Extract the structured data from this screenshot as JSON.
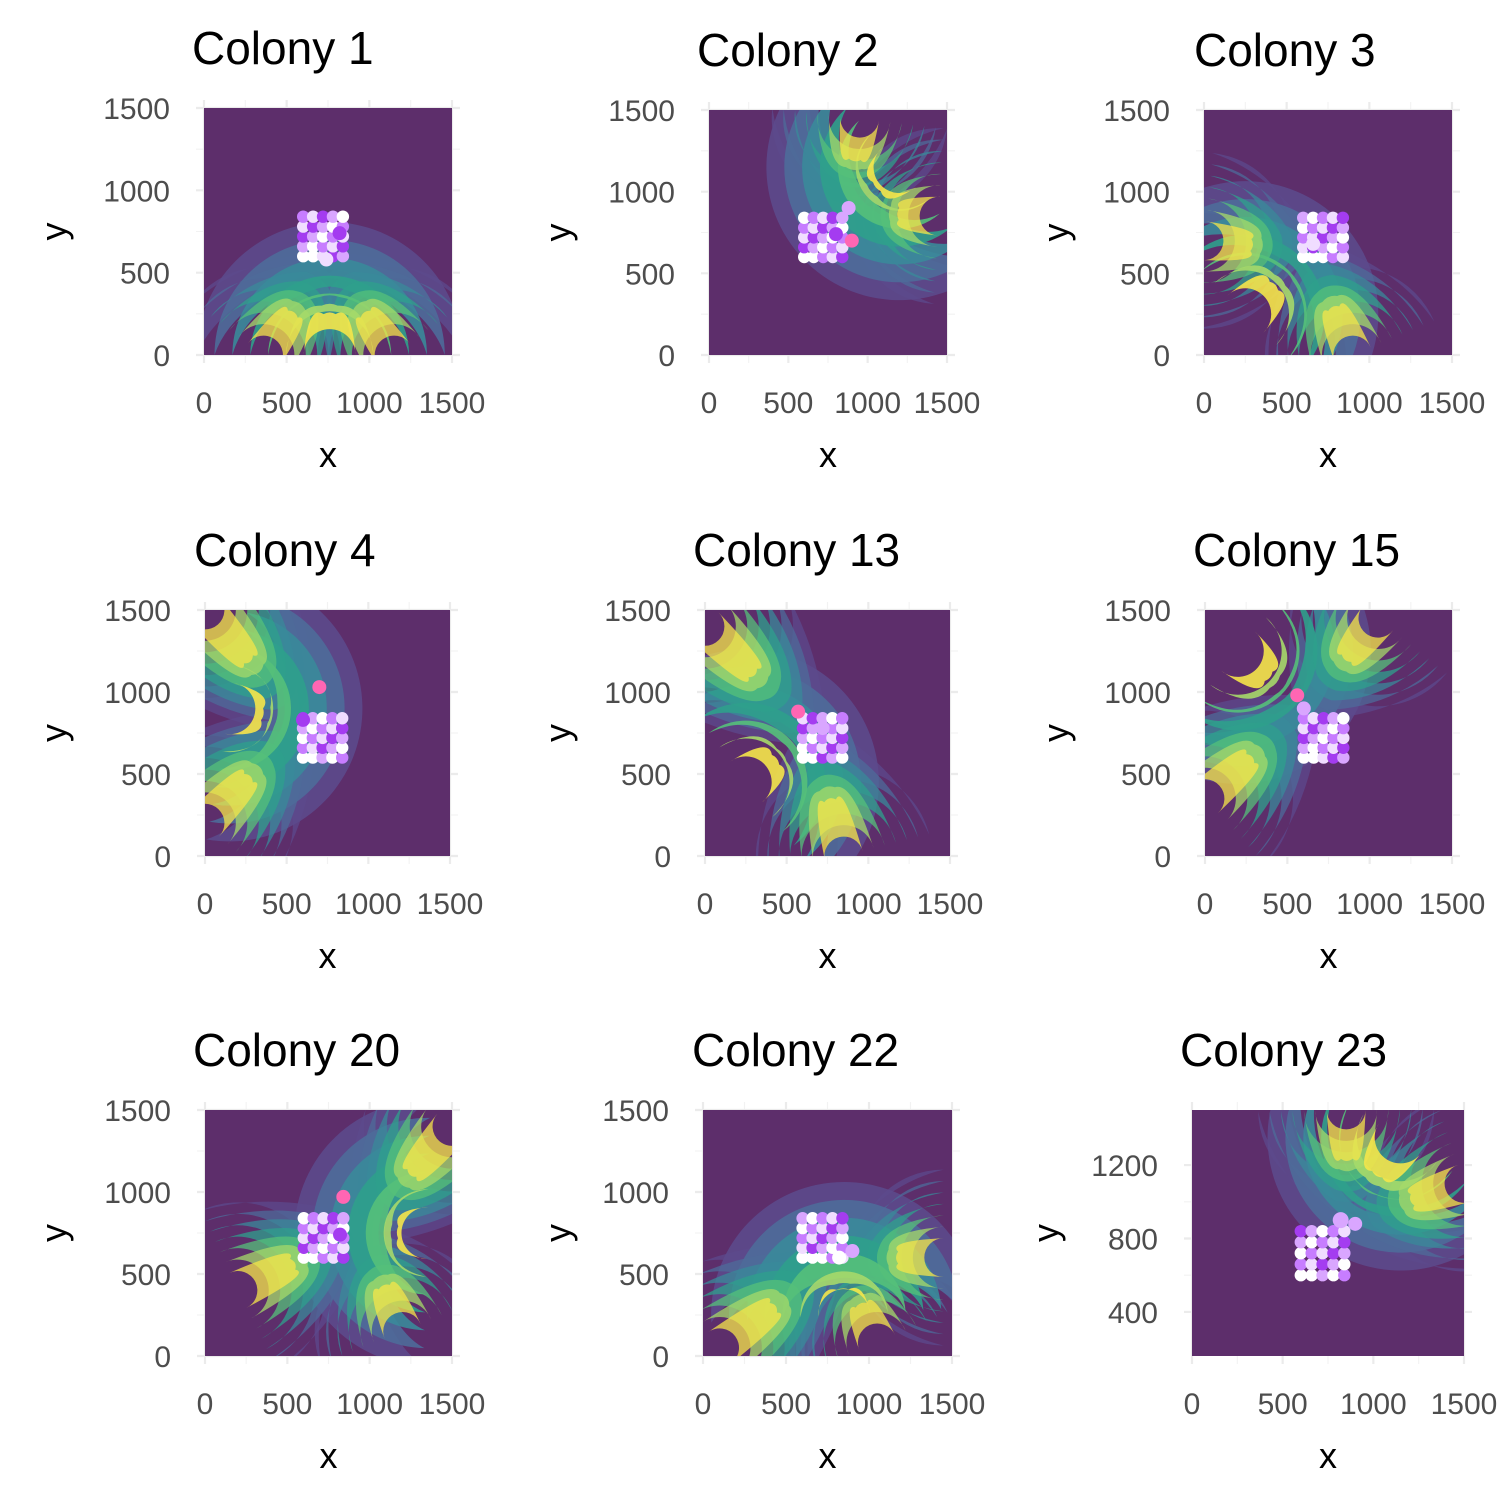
{
  "palette": {
    "background": "#5d2e6b",
    "density": [
      "#5d2e6b",
      "#5c4a8c",
      "#4e6b9a",
      "#3a8a9a",
      "#2fa08c",
      "#55c07a",
      "#a6d96a",
      "#f5e64a"
    ],
    "cells": [
      "#ffffff",
      "#f0ddff",
      "#d9a6ff",
      "#c77dff",
      "#a43cf0",
      "#ff66b3"
    ]
  },
  "chart_data": [
    {
      "type": "density-contour",
      "title": "Colony 1",
      "xlabel": "x",
      "ylabel": "y",
      "xlim": [
        0,
        1500
      ],
      "ylim": [
        0,
        1500
      ],
      "xticks": [
        {
          "v": 0,
          "label": "0"
        },
        {
          "v": 500,
          "label": "500"
        },
        {
          "v": 1000,
          "label": "1000"
        },
        {
          "v": 1500,
          "label": "1500"
        }
      ],
      "yticks": [
        {
          "v": 0,
          "label": "0"
        },
        {
          "v": 500,
          "label": "500"
        },
        {
          "v": 1000,
          "label": "1000"
        },
        {
          "v": 1500,
          "label": "1500"
        }
      ],
      "density": {
        "levels": 7,
        "base": [
          {
            "x": 760,
            "y": 0
          },
          {
            "x": 360,
            "y": 0
          },
          {
            "x": 1150,
            "y": 0
          }
        ],
        "tip": {
          "x": 760,
          "y": 560
        }
      },
      "cell_grid": {
        "x0": 600,
        "y0": 600,
        "step": 60,
        "cols": 5,
        "rows": 5
      },
      "highlights": [
        {
          "x": 820,
          "y": 740,
          "r": 60,
          "color": "#a43cf0"
        },
        {
          "x": 740,
          "y": 580,
          "r": 50,
          "color": "#f0ddff"
        }
      ]
    },
    {
      "type": "density-contour",
      "title": "Colony 2",
      "xlabel": "x",
      "ylabel": "y",
      "xlim": [
        0,
        1500
      ],
      "ylim": [
        0,
        1500
      ],
      "xticks": [
        {
          "v": 0,
          "label": "0"
        },
        {
          "v": 500,
          "label": "500"
        },
        {
          "v": 1000,
          "label": "1000"
        },
        {
          "v": 1500,
          "label": "1500"
        }
      ],
      "yticks": [
        {
          "v": 0,
          "label": "0"
        },
        {
          "v": 500,
          "label": "500"
        },
        {
          "v": 1000,
          "label": "1000"
        },
        {
          "v": 1500,
          "label": "1500"
        }
      ],
      "density": {
        "levels": 7,
        "base": [
          {
            "x": 1200,
            "y": 1150
          },
          {
            "x": 1450,
            "y": 850
          },
          {
            "x": 950,
            "y": 1450
          }
        ],
        "tip": {
          "x": 880,
          "y": 880
        }
      },
      "cell_grid": {
        "x0": 600,
        "y0": 600,
        "step": 60,
        "cols": 5,
        "rows": 5
      },
      "highlights": [
        {
          "x": 800,
          "y": 740,
          "r": 55,
          "color": "#a43cf0"
        },
        {
          "x": 880,
          "y": 900,
          "r": 70,
          "color": "#d9a6ff"
        },
        {
          "x": 900,
          "y": 700,
          "r": 35,
          "color": "#ff66b3"
        }
      ]
    },
    {
      "type": "density-contour",
      "title": "Colony 3",
      "xlabel": "x",
      "ylabel": "y",
      "xlim": [
        0,
        1500
      ],
      "ylim": [
        0,
        1500
      ],
      "xticks": [
        {
          "v": 0,
          "label": "0"
        },
        {
          "v": 500,
          "label": "500"
        },
        {
          "v": 1000,
          "label": "1000"
        },
        {
          "v": 1500,
          "label": "1500"
        }
      ],
      "yticks": [
        {
          "v": 0,
          "label": "0"
        },
        {
          "v": 500,
          "label": "500"
        },
        {
          "v": 1000,
          "label": "1000"
        },
        {
          "v": 1500,
          "label": "1500"
        }
      ],
      "density": {
        "levels": 7,
        "base": [
          {
            "x": 250,
            "y": 250
          },
          {
            "x": 0,
            "y": 700
          },
          {
            "x": 900,
            "y": 0
          }
        ],
        "tip": {
          "x": 640,
          "y": 640
        }
      },
      "cell_grid": {
        "x0": 600,
        "y0": 600,
        "step": 60,
        "cols": 5,
        "rows": 5
      },
      "highlights": [
        {
          "x": 660,
          "y": 680,
          "r": 55,
          "color": "#f0ddff"
        }
      ]
    },
    {
      "type": "density-contour",
      "title": "Colony 4",
      "xlabel": "x",
      "ylabel": "y",
      "xlim": [
        0,
        1500
      ],
      "ylim": [
        0,
        1500
      ],
      "xticks": [
        {
          "v": 0,
          "label": "0"
        },
        {
          "v": 500,
          "label": "500"
        },
        {
          "v": 1000,
          "label": "1000"
        },
        {
          "v": 1500,
          "label": "1500"
        }
      ],
      "yticks": [
        {
          "v": 0,
          "label": "0"
        },
        {
          "v": 500,
          "label": "500"
        },
        {
          "v": 1000,
          "label": "1000"
        },
        {
          "v": 1500,
          "label": "1500"
        }
      ],
      "density": {
        "levels": 7,
        "base": [
          {
            "x": 150,
            "y": 900
          },
          {
            "x": 0,
            "y": 1500
          },
          {
            "x": 0,
            "y": 200
          }
        ],
        "tip": {
          "x": 600,
          "y": 820
        }
      },
      "cell_grid": {
        "x0": 600,
        "y0": 600,
        "step": 60,
        "cols": 5,
        "rows": 5
      },
      "highlights": [
        {
          "x": 600,
          "y": 830,
          "r": 60,
          "color": "#a43cf0"
        },
        {
          "x": 700,
          "y": 1030,
          "r": 50,
          "color": "#ff66b3"
        }
      ]
    },
    {
      "type": "density-contour",
      "title": "Colony 13",
      "xlabel": "x",
      "ylabel": "y",
      "xlim": [
        0,
        1500
      ],
      "ylim": [
        0,
        1500
      ],
      "xticks": [
        {
          "v": 0,
          "label": "0"
        },
        {
          "v": 500,
          "label": "500"
        },
        {
          "v": 1000,
          "label": "1000"
        },
        {
          "v": 1500,
          "label": "1500"
        }
      ],
      "yticks": [
        {
          "v": 0,
          "label": "0"
        },
        {
          "v": 500,
          "label": "500"
        },
        {
          "v": 1000,
          "label": "1000"
        },
        {
          "v": 1500,
          "label": "1500"
        }
      ],
      "density": {
        "levels": 7,
        "base": [
          {
            "x": 250,
            "y": 450
          },
          {
            "x": 0,
            "y": 1400
          },
          {
            "x": 850,
            "y": 0
          }
        ],
        "tip": {
          "x": 660,
          "y": 760
        }
      },
      "cell_grid": {
        "x0": 600,
        "y0": 600,
        "step": 60,
        "cols": 5,
        "rows": 5
      },
      "highlights": [
        {
          "x": 720,
          "y": 780,
          "r": 65,
          "color": "#d9a6ff"
        },
        {
          "x": 570,
          "y": 880,
          "r": 40,
          "color": "#ff66b3"
        }
      ]
    },
    {
      "type": "density-contour",
      "title": "Colony 15",
      "xlabel": "x",
      "ylabel": "y",
      "xlim": [
        0,
        1500
      ],
      "ylim": [
        0,
        1500
      ],
      "xticks": [
        {
          "v": 0,
          "label": "0"
        },
        {
          "v": 500,
          "label": "500"
        },
        {
          "v": 1000,
          "label": "1000"
        },
        {
          "v": 1500,
          "label": "1500"
        }
      ],
      "yticks": [
        {
          "v": 0,
          "label": "0"
        },
        {
          "v": 500,
          "label": "500"
        },
        {
          "v": 1000,
          "label": "1000"
        },
        {
          "v": 1500,
          "label": "1500"
        }
      ],
      "density": {
        "levels": 7,
        "base": [
          {
            "x": 200,
            "y": 1250
          },
          {
            "x": 1050,
            "y": 1450
          },
          {
            "x": 0,
            "y": 350
          }
        ],
        "tip": {
          "x": 620,
          "y": 900
        }
      },
      "cell_grid": {
        "x0": 600,
        "y0": 600,
        "step": 60,
        "cols": 5,
        "rows": 5
      },
      "highlights": [
        {
          "x": 600,
          "y": 900,
          "r": 65,
          "color": "#d9a6ff"
        },
        {
          "x": 560,
          "y": 980,
          "r": 45,
          "color": "#ff66b3"
        }
      ]
    },
    {
      "type": "density-contour",
      "title": "Colony 20",
      "xlabel": "x",
      "ylabel": "y",
      "xlim": [
        0,
        1500
      ],
      "ylim": [
        0,
        1500
      ],
      "xticks": [
        {
          "v": 0,
          "label": "0"
        },
        {
          "v": 500,
          "label": "500"
        },
        {
          "v": 1000,
          "label": "1000"
        },
        {
          "v": 1500,
          "label": "1500"
        }
      ],
      "yticks": [
        {
          "v": 0,
          "label": "0"
        },
        {
          "v": 500,
          "label": "500"
        },
        {
          "v": 1000,
          "label": "1000"
        },
        {
          "v": 1500,
          "label": "1500"
        }
      ],
      "density": {
        "levels": 7,
        "base": [
          {
            "x": 1350,
            "y": 750
          },
          {
            "x": 1500,
            "y": 1400
          },
          {
            "x": 1200,
            "y": 150
          },
          {
            "x": 200,
            "y": 400
          }
        ],
        "tip": {
          "x": 950,
          "y": 760
        }
      },
      "cell_grid": {
        "x0": 600,
        "y0": 600,
        "step": 60,
        "cols": 5,
        "rows": 5
      },
      "highlights": [
        {
          "x": 820,
          "y": 740,
          "r": 60,
          "color": "#a43cf0"
        },
        {
          "x": 840,
          "y": 970,
          "r": 45,
          "color": "#ff66b3"
        }
      ]
    },
    {
      "type": "density-contour",
      "title": "Colony 22",
      "xlabel": "x",
      "ylabel": "y",
      "xlim": [
        0,
        1500
      ],
      "ylim": [
        0,
        1500
      ],
      "xticks": [
        {
          "v": 0,
          "label": "0"
        },
        {
          "v": 500,
          "label": "500"
        },
        {
          "v": 1000,
          "label": "1000"
        },
        {
          "v": 1500,
          "label": "1500"
        }
      ],
      "yticks": [
        {
          "v": 0,
          "label": "0"
        },
        {
          "v": 500,
          "label": "500"
        },
        {
          "v": 1000,
          "label": "1000"
        },
        {
          "v": 1500,
          "label": "1500"
        }
      ],
      "density": {
        "levels": 7,
        "base": [
          {
            "x": 850,
            "y": 250
          },
          {
            "x": 1050,
            "y": 80
          },
          {
            "x": 100,
            "y": 50
          },
          {
            "x": 1450,
            "y": 600
          }
        ],
        "tip": {
          "x": 830,
          "y": 600
        }
      },
      "cell_grid": {
        "x0": 600,
        "y0": 600,
        "step": 60,
        "cols": 5,
        "rows": 5
      },
      "highlights": [
        {
          "x": 820,
          "y": 600,
          "r": 60,
          "color": "#ffffff"
        },
        {
          "x": 900,
          "y": 640,
          "r": 40,
          "color": "#d9a6ff"
        }
      ]
    },
    {
      "type": "density-contour",
      "title": "Colony 23",
      "xlabel": "x",
      "ylabel": "y",
      "xlim": [
        0,
        1500
      ],
      "ylim": [
        160,
        1500
      ],
      "xticks": [
        {
          "v": 0,
          "label": "0"
        },
        {
          "v": 500,
          "label": "500"
        },
        {
          "v": 1000,
          "label": "1000"
        },
        {
          "v": 1500,
          "label": "1500"
        }
      ],
      "yticks": [
        {
          "v": 400,
          "label": "400"
        },
        {
          "v": 800,
          "label": "800"
        },
        {
          "v": 1200,
          "label": "1200"
        }
      ],
      "density": {
        "levels": 7,
        "base": [
          {
            "x": 1150,
            "y": 1350
          },
          {
            "x": 1500,
            "y": 1100
          },
          {
            "x": 850,
            "y": 1500
          }
        ],
        "tip": {
          "x": 860,
          "y": 900
        }
      },
      "cell_grid": {
        "x0": 600,
        "y0": 600,
        "step": 60,
        "cols": 5,
        "rows": 5
      },
      "highlights": [
        {
          "x": 820,
          "y": 900,
          "r": 80,
          "color": "#d9a6ff"
        },
        {
          "x": 900,
          "y": 880,
          "r": 45,
          "color": "#d9a6ff"
        }
      ]
    }
  ]
}
